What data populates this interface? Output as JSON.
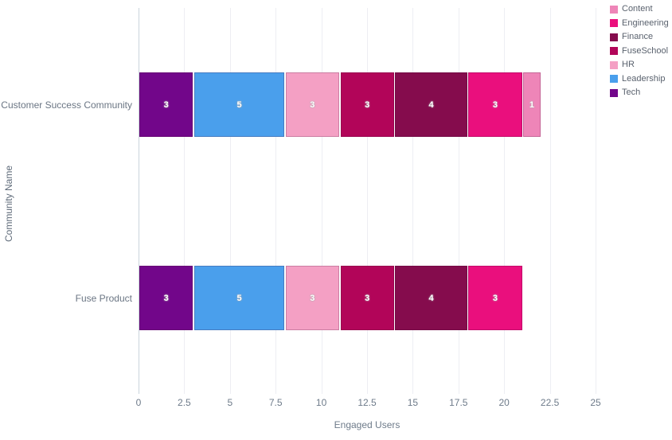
{
  "chart_data": {
    "type": "bar",
    "orientation": "horizontal",
    "stacked": true,
    "xlabel": "Engaged Users",
    "ylabel": "Community Name",
    "xlim": [
      0,
      25
    ],
    "x_ticks": [
      0,
      2.5,
      5,
      7.5,
      10,
      12.5,
      15,
      17.5,
      20,
      22.5,
      25
    ],
    "grid": "vertical",
    "legend_position": "top-right",
    "categories": [
      "Customer Success Community",
      "Fuse Product"
    ],
    "series": [
      {
        "name": "Tech",
        "color": "#72068A",
        "values": [
          3,
          3
        ]
      },
      {
        "name": "Leadership",
        "color": "#4A9FEC",
        "values": [
          5,
          5
        ]
      },
      {
        "name": "HR",
        "color": "#F4A0C4",
        "values": [
          3,
          3
        ]
      },
      {
        "name": "FuseSchool",
        "color": "#B20559",
        "values": [
          3,
          3
        ]
      },
      {
        "name": "Finance",
        "color": "#850C4D",
        "values": [
          4,
          4
        ]
      },
      {
        "name": "Engineering",
        "color": "#EA0F7D",
        "values": [
          3,
          3
        ]
      },
      {
        "name": "Content",
        "color": "#EE85B8",
        "values": [
          1,
          0
        ]
      }
    ],
    "legend_items": [
      {
        "label": "Content",
        "color": "#EE85B8"
      },
      {
        "label": "Engineering",
        "color": "#EA0F7D"
      },
      {
        "label": "Finance",
        "color": "#850C4D"
      },
      {
        "label": "FuseSchool",
        "color": "#B20559"
      },
      {
        "label": "HR",
        "color": "#F4A0C4"
      },
      {
        "label": "Leadership",
        "color": "#4A9FEC"
      },
      {
        "label": "Tech",
        "color": "#72068A"
      }
    ]
  }
}
